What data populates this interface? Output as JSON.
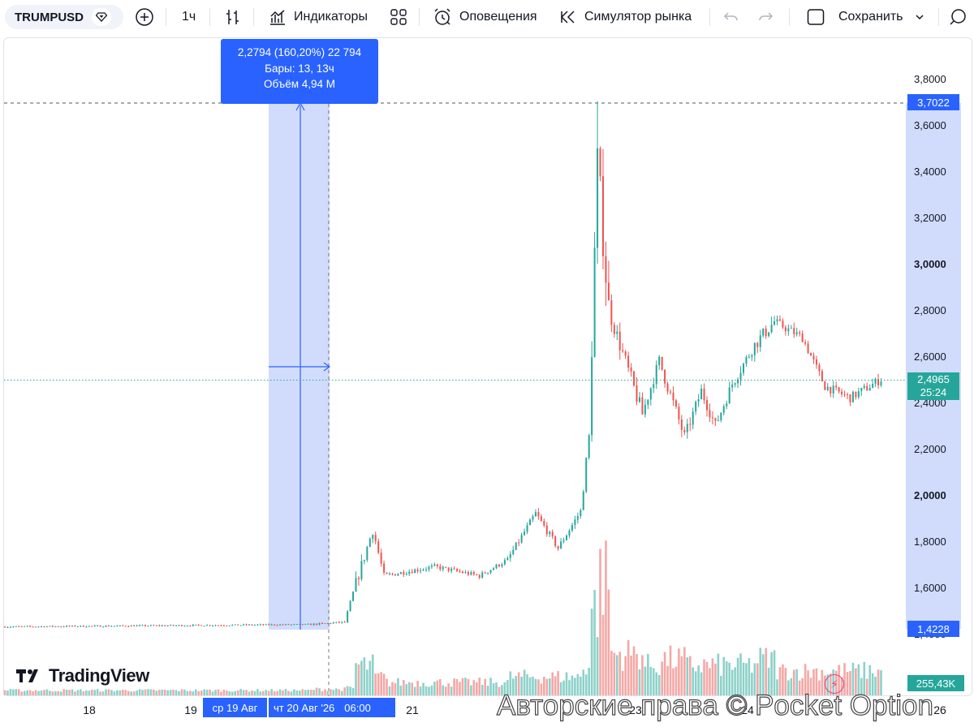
{
  "toolbar": {
    "symbol": "TRUMPUSD",
    "interval": "1ч",
    "indicators": "Индикаторы",
    "alerts": "Оповещения",
    "replay": "Симулятор рынка",
    "save": "Сохранить"
  },
  "tooltip": {
    "line1": "2,2794 (160,20%) 22 794",
    "line2": "Бары: 13, 13ч",
    "line3": "Объём 4,94 M"
  },
  "price_axis": {
    "ticks": [
      "3,8000",
      "3,6000",
      "3,4000",
      "3,2000",
      "3,0000",
      "2,8000",
      "2,6000",
      "2,4000",
      "2,2000",
      "2,0000",
      "1,8000",
      "1,6000",
      "1,4000"
    ],
    "tick_values": [
      3.8,
      3.6,
      3.4,
      3.2,
      3.0,
      2.8,
      2.6,
      2.4,
      2.2,
      2.0,
      1.8,
      1.6,
      1.4
    ],
    "high_label": "3,7022",
    "current_price": "2,4965",
    "countdown": "25:24",
    "low_label": "1,4228",
    "volume_label": "255,43K"
  },
  "time_axis": {
    "labels": [
      "18",
      "19",
      "21",
      "23",
      "24",
      "26"
    ],
    "range_start": "ср 19 Авг",
    "range_end": "чт 20 Авг '26",
    "range_time": "06:00"
  },
  "branding": {
    "logo_text": "TradingView",
    "watermark": "Авторские права © Pocket Option"
  },
  "colors": {
    "up": "#26a69a",
    "down": "#ef5350",
    "up_volume": "#8dd1c9",
    "down_volume": "#f4a8a6",
    "accent": "#2962ff",
    "selection": "#c9d6fb"
  },
  "chart_data": {
    "type": "candlestick",
    "symbol": "TRUMPUSD",
    "interval": "1h",
    "ylim": [
      1.36,
      3.92
    ],
    "high": 3.7022,
    "low": 1.4228,
    "last": 2.4965,
    "selection": {
      "change": 2.2794,
      "change_pct": 160.2,
      "bars": 13,
      "volume": "4,94 M"
    },
    "segments": [
      {
        "from": 1.43,
        "to": 1.44,
        "bars": 110,
        "noise": 0.006
      },
      {
        "from": 1.44,
        "to": 1.45,
        "bars": 12,
        "noise": 0.008
      },
      {
        "from": 1.45,
        "to": 1.58,
        "bars": 3,
        "noise": 0.01
      },
      {
        "from": 1.58,
        "to": 1.85,
        "bars": 7,
        "noise": 0.05
      },
      {
        "from": 1.85,
        "to": 1.65,
        "bars": 4,
        "noise": 0.03
      },
      {
        "from": 1.65,
        "to": 1.69,
        "bars": 18,
        "noise": 0.02
      },
      {
        "from": 1.69,
        "to": 1.65,
        "bars": 16,
        "noise": 0.02
      },
      {
        "from": 1.65,
        "to": 1.72,
        "bars": 10,
        "noise": 0.02
      },
      {
        "from": 1.72,
        "to": 1.92,
        "bars": 10,
        "noise": 0.03
      },
      {
        "from": 1.92,
        "to": 1.77,
        "bars": 8,
        "noise": 0.03
      },
      {
        "from": 1.77,
        "to": 1.93,
        "bars": 8,
        "noise": 0.03
      },
      {
        "from": 1.93,
        "to": 2.25,
        "bars": 3,
        "noise": 0.05
      },
      {
        "from": 2.25,
        "to": 3.45,
        "bars": 3,
        "noise": 0.15
      },
      {
        "from": 3.45,
        "to": 2.8,
        "bars": 4,
        "noise": 0.2
      },
      {
        "from": 2.8,
        "to": 2.35,
        "bars": 12,
        "noise": 0.07
      },
      {
        "from": 2.35,
        "to": 2.58,
        "bars": 6,
        "noise": 0.05
      },
      {
        "from": 2.58,
        "to": 2.25,
        "bars": 9,
        "noise": 0.06
      },
      {
        "from": 2.25,
        "to": 2.45,
        "bars": 6,
        "noise": 0.05
      },
      {
        "from": 2.45,
        "to": 2.3,
        "bars": 5,
        "noise": 0.05
      },
      {
        "from": 2.3,
        "to": 2.48,
        "bars": 6,
        "noise": 0.05
      },
      {
        "from": 2.48,
        "to": 2.65,
        "bars": 8,
        "noise": 0.05
      },
      {
        "from": 2.65,
        "to": 2.75,
        "bars": 7,
        "noise": 0.06
      },
      {
        "from": 2.75,
        "to": 2.68,
        "bars": 10,
        "noise": 0.04
      },
      {
        "from": 2.68,
        "to": 2.47,
        "bars": 8,
        "noise": 0.04
      },
      {
        "from": 2.47,
        "to": 2.42,
        "bars": 9,
        "noise": 0.04
      },
      {
        "from": 2.42,
        "to": 2.5,
        "bars": 11,
        "noise": 0.04
      }
    ]
  }
}
